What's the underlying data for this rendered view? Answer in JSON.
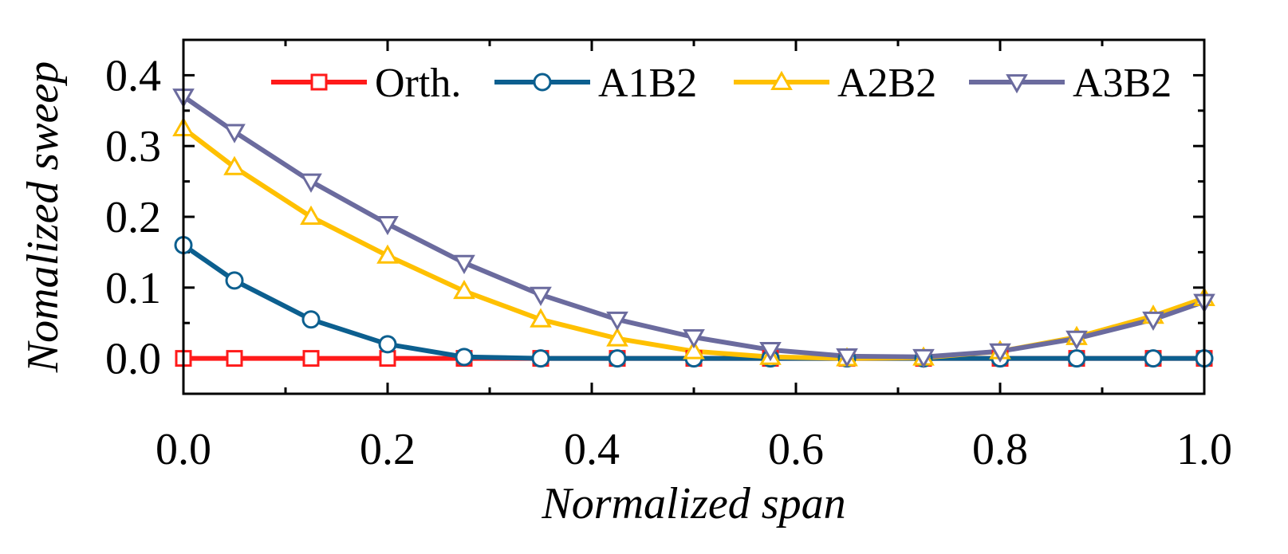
{
  "chart_data": {
    "type": "line",
    "title": "",
    "xlabel": "Normalized span",
    "ylabel": "Nomalized sweep",
    "xlim": [
      0.0,
      1.0
    ],
    "ylim": [
      -0.05,
      0.45
    ],
    "xticks": [
      0.0,
      0.2,
      0.4,
      0.6,
      0.8,
      1.0
    ],
    "xtick_labels": [
      "0.0",
      "0.2",
      "0.4",
      "0.6",
      "0.8",
      "1.0"
    ],
    "yticks": [
      0.0,
      0.1,
      0.2,
      0.3,
      0.4
    ],
    "ytick_labels": [
      "0.0",
      "0.1",
      "0.2",
      "0.3",
      "0.4"
    ],
    "grid": false,
    "legend_position": "top-right",
    "x": [
      0.0,
      0.05,
      0.125,
      0.2,
      0.275,
      0.35,
      0.425,
      0.5,
      0.575,
      0.65,
      0.725,
      0.8,
      0.875,
      0.95,
      1.0
    ],
    "series": [
      {
        "name": "Orth.",
        "color": "#ff1a1a",
        "marker": "square",
        "values": [
          0.0,
          0.0,
          0.0,
          0.0,
          0.0,
          0.0,
          0.0,
          0.0,
          0.0,
          0.0,
          0.0,
          0.0,
          0.0,
          0.0,
          0.0
        ]
      },
      {
        "name": "A1B2",
        "color": "#0c5f8f",
        "marker": "circle",
        "values": [
          0.16,
          0.11,
          0.055,
          0.02,
          0.002,
          0.0,
          0.0,
          0.0,
          0.0,
          0.0,
          0.0,
          0.0,
          0.0,
          0.0,
          0.0
        ]
      },
      {
        "name": "A2B2",
        "color": "#ffc000",
        "marker": "triangle-up",
        "values": [
          0.325,
          0.27,
          0.2,
          0.145,
          0.095,
          0.055,
          0.028,
          0.01,
          0.002,
          0.0,
          0.001,
          0.01,
          0.03,
          0.06,
          0.085
        ]
      },
      {
        "name": "A3B2",
        "color": "#6b6b9e",
        "marker": "triangle-down",
        "values": [
          0.37,
          0.32,
          0.25,
          0.19,
          0.135,
          0.09,
          0.055,
          0.03,
          0.012,
          0.003,
          0.002,
          0.01,
          0.028,
          0.055,
          0.08
        ]
      }
    ]
  }
}
